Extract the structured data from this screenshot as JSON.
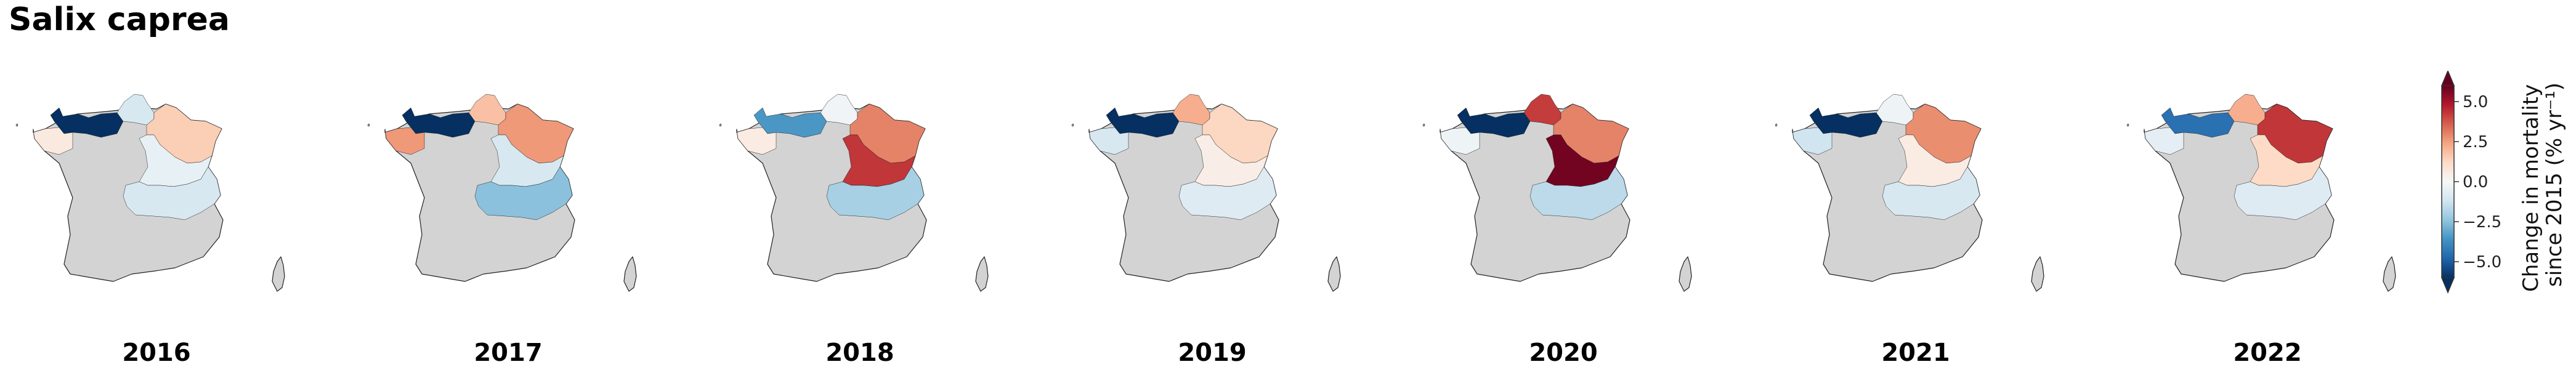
{
  "title": "Salix caprea",
  "colors": {
    "no_data": "#d3d3d3",
    "outline": "#222222"
  },
  "colorbar": {
    "label_line1": "Change in mortality",
    "label_line2": "since 2015 (% yr⁻¹)",
    "min": -6,
    "max": 6,
    "ticks": [
      {
        "value": 5.0,
        "label": "5.0"
      },
      {
        "value": 2.5,
        "label": "2.5"
      },
      {
        "value": 0.0,
        "label": "0.0"
      },
      {
        "value": -2.5,
        "label": "−2.5"
      },
      {
        "value": -5.0,
        "label": "−5.0"
      }
    ],
    "stops": [
      "#053061",
      "#2166ac",
      "#4393c3",
      "#92c5de",
      "#d1e5f0",
      "#f7f7f7",
      "#fddbc7",
      "#f4a582",
      "#d6604d",
      "#b2182b",
      "#67001f"
    ]
  },
  "region_names": [
    "Bretagne",
    "Normandie",
    "Hauts-de-France",
    "Grand Est",
    "Île-de-France",
    "Centre-Val de Loire",
    "Bourgogne-Franche-Comté",
    "Auvergne-Rhône-Alpes"
  ],
  "panels": [
    {
      "year": "2016",
      "regions": {
        "Bretagne": 0.6,
        "Normandie": -6.0,
        "Hauts-de-France": -1.0,
        "Grand Est": 1.5,
        "Bourgogne-Franche-Comté": -0.5,
        "Auvergne-Rhône-Alpes": -1.0
      }
    },
    {
      "year": "2017",
      "regions": {
        "Bretagne": 2.6,
        "Normandie": -6.0,
        "Hauts-de-France": 1.8,
        "Grand Est": 2.6,
        "Bourgogne-Franche-Comté": -1.0,
        "Auvergne-Rhône-Alpes": -2.5
      }
    },
    {
      "year": "2018",
      "regions": {
        "Bretagne": 0.5,
        "Normandie": -3.5,
        "Hauts-de-France": -0.2,
        "Grand Est": 3.0,
        "Bourgogne-Franche-Comté": 4.3,
        "Auvergne-Rhône-Alpes": -2.0
      }
    },
    {
      "year": "2019",
      "regions": {
        "Bretagne": -1.0,
        "Normandie": -6.0,
        "Hauts-de-France": 2.2,
        "Grand Est": 1.3,
        "Bourgogne-Franche-Comté": 0.4,
        "Auvergne-Rhône-Alpes": -0.8
      }
    },
    {
      "year": "2020",
      "regions": {
        "Bretagne": -0.3,
        "Normandie": -6.0,
        "Hauts-de-France": 4.2,
        "Grand Est": 3.0,
        "Bourgogne-Franche-Comté": 5.8,
        "Auvergne-Rhône-Alpes": -1.6
      }
    },
    {
      "year": "2021",
      "regions": {
        "Bretagne": -1.2,
        "Normandie": -6.0,
        "Hauts-de-France": -0.3,
        "Grand Est": 2.8,
        "Bourgogne-Franche-Comté": 0.5,
        "Auvergne-Rhône-Alpes": -1.0
      }
    },
    {
      "year": "2022",
      "regions": {
        "Bretagne": -0.6,
        "Normandie": -4.5,
        "Hauts-de-France": 2.2,
        "Grand Est": 4.3,
        "Bourgogne-Franche-Comté": 1.2,
        "Auvergne-Rhône-Alpes": -0.8
      }
    }
  ]
}
